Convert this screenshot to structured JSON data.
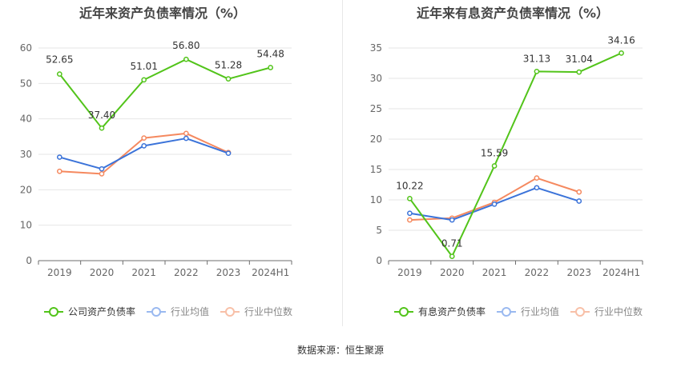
{
  "source_label": "数据来源：恒生聚源",
  "chart_data": [
    {
      "type": "line",
      "title": "近年来资产负债率情况（%）",
      "categories": [
        "2019",
        "2020",
        "2021",
        "2022",
        "2023",
        "2024H1"
      ],
      "ylim": [
        0,
        60
      ],
      "yticks": [
        0,
        10,
        20,
        30,
        40,
        50,
        60
      ],
      "grid": true,
      "legend_position": "bottom",
      "series": [
        {
          "name": "公司资产负债率",
          "color": "#52c41a",
          "labeled": true,
          "values": [
            52.65,
            37.4,
            51.01,
            56.8,
            51.28,
            54.48
          ],
          "labels": [
            "52.65",
            "37.40",
            "51.01",
            "56.80",
            "51.28",
            "54.48"
          ]
        },
        {
          "name": "行业均值",
          "color": "#3b73d9",
          "labeled": false,
          "values": [
            29.2,
            25.9,
            32.4,
            34.5,
            30.3,
            null
          ]
        },
        {
          "name": "行业中位数",
          "color": "#f5895f",
          "labeled": false,
          "values": [
            25.2,
            24.5,
            34.6,
            35.9,
            30.5,
            null
          ]
        }
      ]
    },
    {
      "type": "line",
      "title": "近年来有息资产负债率情况（%）",
      "categories": [
        "2019",
        "2020",
        "2021",
        "2022",
        "2023",
        "2024H1"
      ],
      "ylim": [
        0,
        35
      ],
      "yticks": [
        0,
        5,
        10,
        15,
        20,
        25,
        30,
        35
      ],
      "grid": true,
      "legend_position": "bottom",
      "series": [
        {
          "name": "有息资产负债率",
          "color": "#52c41a",
          "labeled": true,
          "values": [
            10.22,
            0.71,
            15.59,
            31.13,
            31.04,
            34.16
          ],
          "labels": [
            "10.22",
            "0.71",
            "15.59",
            "31.13",
            "31.04",
            "34.16"
          ]
        },
        {
          "name": "行业均值",
          "color": "#3b73d9",
          "labeled": false,
          "values": [
            7.8,
            6.7,
            9.3,
            12.0,
            9.8,
            null
          ]
        },
        {
          "name": "行业中位数",
          "color": "#f5895f",
          "labeled": false,
          "values": [
            6.7,
            7.0,
            9.6,
            13.6,
            11.3,
            null
          ]
        }
      ]
    }
  ]
}
